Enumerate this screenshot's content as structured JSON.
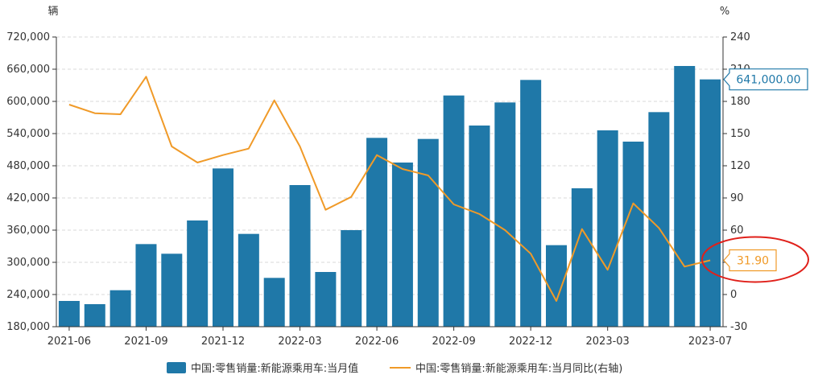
{
  "chart_data": {
    "type": "bar+line",
    "left_axis": {
      "unit": "辆",
      "ticks": [
        180000,
        240000,
        300000,
        360000,
        420000,
        480000,
        540000,
        600000,
        660000,
        720000
      ],
      "tick_labels": [
        "180,000",
        "240,000",
        "300,000",
        "360,000",
        "420,000",
        "480,000",
        "540,000",
        "600,000",
        "660,000",
        "720,000"
      ],
      "ylim": [
        180000,
        720000
      ]
    },
    "right_axis": {
      "unit": "%",
      "ticks": [
        -30,
        0,
        30,
        60,
        90,
        120,
        150,
        180,
        210,
        240
      ],
      "tick_labels": [
        "-30",
        "0",
        "30",
        "60",
        "90",
        "120",
        "150",
        "180",
        "210",
        "240"
      ],
      "ylim": [
        -30,
        240
      ]
    },
    "x_tick_labels": [
      "2021-06",
      "2021-09",
      "2021-12",
      "2022-03",
      "2022-06",
      "2022-09",
      "2022-12",
      "2023-03",
      "2023-07"
    ],
    "x_tick_months": [
      "2021-06",
      "2021-09",
      "2021-12",
      "2022-03",
      "2022-06",
      "2022-09",
      "2022-12",
      "2023-03",
      "2023-07"
    ],
    "months": [
      "2021-06",
      "2021-07",
      "2021-08",
      "2021-09",
      "2021-10",
      "2021-11",
      "2021-12",
      "2022-01",
      "2022-02",
      "2022-03",
      "2022-04",
      "2022-05",
      "2022-06",
      "2022-07",
      "2022-08",
      "2022-09",
      "2022-10",
      "2022-11",
      "2022-12",
      "2023-01",
      "2023-02",
      "2023-03",
      "2023-04",
      "2023-05",
      "2023-06",
      "2023-07"
    ],
    "series": [
      {
        "name": "中国:零售销量:新能源乘用车:当月值",
        "axis": "left",
        "kind": "bar",
        "color": "#1f78a8",
        "values": [
          228000,
          222000,
          248000,
          334000,
          316000,
          378000,
          475000,
          353000,
          271000,
          444000,
          282000,
          360000,
          532000,
          486000,
          530000,
          611000,
          555000,
          598000,
          640000,
          332000,
          438000,
          546000,
          525000,
          580000,
          666000,
          641000
        ]
      },
      {
        "name": "中国:零售销量:新能源乘用车:当月同比(右轴)",
        "axis": "right",
        "kind": "line",
        "color": "#f09a28",
        "values": [
          177,
          169,
          168,
          203,
          138,
          123,
          130,
          136,
          181,
          138,
          79,
          91,
          130,
          117,
          111,
          84,
          75,
          60,
          38,
          -6,
          61,
          23,
          85,
          62,
          26,
          31.9
        ]
      }
    ],
    "callouts": [
      {
        "series": 0,
        "label": "641,000.00",
        "color": "#1f78a8"
      },
      {
        "series": 1,
        "label": "31.90",
        "color": "#f09a28"
      }
    ],
    "highlight": {
      "color": "#e0201a",
      "series": 1
    },
    "grid": true,
    "legend": "bottom-center"
  }
}
